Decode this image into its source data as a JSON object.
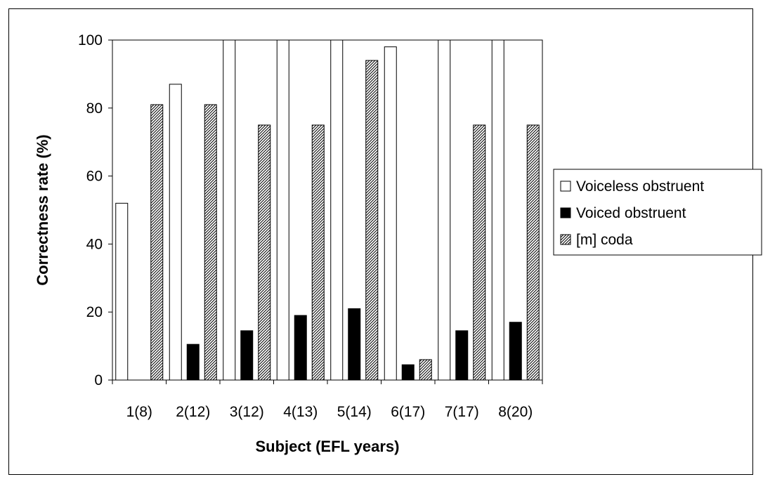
{
  "chart_data": {
    "type": "bar",
    "title": "",
    "xlabel": "Subject (EFL years)",
    "ylabel": "Correctness rate (%)",
    "ylim": [
      0,
      100
    ],
    "yticks": [
      0,
      20,
      40,
      60,
      80,
      100
    ],
    "categories": [
      "1(8)",
      "2(12)",
      "3(12)",
      "4(13)",
      "5(14)",
      "6(17)",
      "7(17)",
      "8(20)"
    ],
    "series": [
      {
        "name": "Voiceless obstruent",
        "fill": "white",
        "values": [
          52,
          87,
          100,
          100,
          100,
          98,
          100,
          100
        ]
      },
      {
        "name": "Voiced obstruent",
        "fill": "black",
        "values": [
          0,
          10.5,
          14.5,
          19,
          21,
          4.5,
          14.5,
          17
        ]
      },
      {
        "name": "[m] coda",
        "fill": "hatch",
        "values": [
          81,
          81,
          75,
          75,
          94,
          6,
          75,
          75
        ]
      }
    ],
    "legend_position": "right",
    "grid": false
  }
}
